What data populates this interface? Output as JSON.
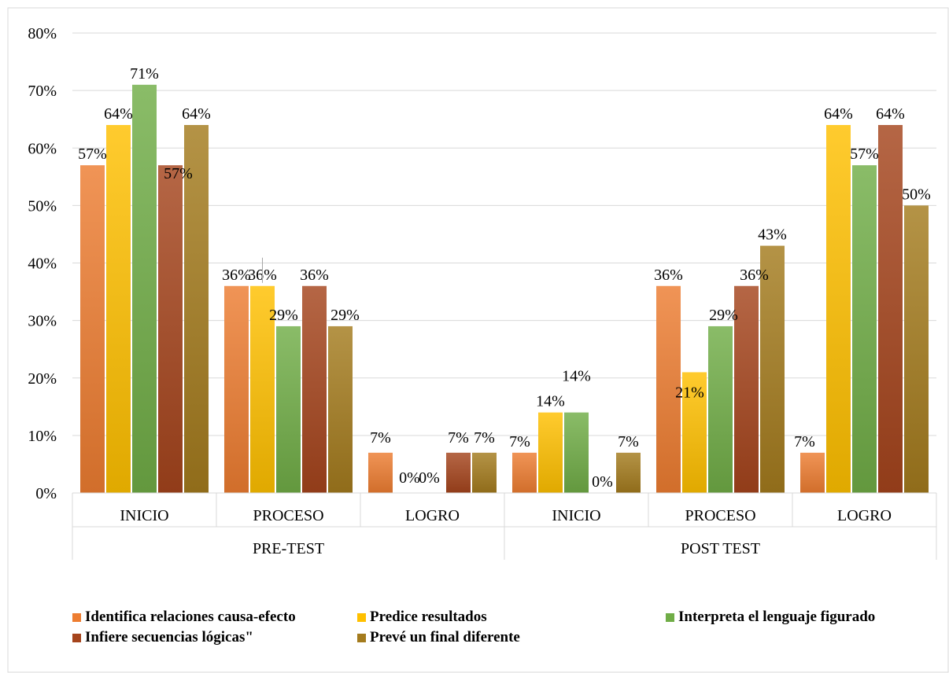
{
  "chart_data": {
    "type": "bar",
    "groups": [
      {
        "label": "PRE-TEST",
        "categories": [
          "INICIO",
          "PROCESO",
          "LOGRO"
        ]
      },
      {
        "label": "POST TEST",
        "categories": [
          "INICIO",
          "PROCESO",
          "LOGRO"
        ]
      }
    ],
    "categories": [
      "INICIO",
      "PROCESO",
      "LOGRO",
      "INICIO",
      "PROCESO",
      "LOGRO"
    ],
    "series": [
      {
        "name": "Identifica relaciones causa-efecto",
        "values": [
          57,
          36,
          7,
          7,
          36,
          7
        ],
        "labels": [
          "57%",
          "36%",
          "7%",
          "7%",
          "36%",
          "7%"
        ],
        "color": "#ED7D31"
      },
      {
        "name": "Predice resultados",
        "values": [
          64,
          36,
          0,
          14,
          21,
          64
        ],
        "labels": [
          "64%",
          "36%",
          "0%",
          "14%",
          "21%",
          "64%"
        ],
        "color": "#FFC000"
      },
      {
        "name": "Interpreta el lenguaje figurado",
        "values": [
          71,
          29,
          0,
          14,
          29,
          57
        ],
        "labels": [
          "71%",
          "29%",
          "0%",
          "14%",
          "29%",
          "57%"
        ],
        "color": "#70AD47"
      },
      {
        "name": "Infiere secuencias lógicas\"",
        "values": [
          57,
          36,
          7,
          0,
          36,
          64
        ],
        "labels": [
          "57%",
          "36%",
          "7%",
          "0%",
          "36%",
          "64%"
        ],
        "color": "#A5441C"
      },
      {
        "name": "Prevé un final diferente",
        "values": [
          64,
          29,
          7,
          7,
          43,
          50
        ],
        "labels": [
          "64%",
          "29%",
          "7%",
          "7%",
          "43%",
          "50%"
        ],
        "color": "#A47B1D"
      }
    ],
    "y_ticks": [
      "0%",
      "10%",
      "20%",
      "30%",
      "40%",
      "50%",
      "60%",
      "70%",
      "80%"
    ],
    "ylim": [
      0,
      80
    ],
    "grid": true,
    "legend_position": "bottom"
  },
  "legend_rows": [
    [
      "Identifica relaciones causa-efecto",
      "Predice resultados",
      "Interpreta el lenguaje figurado"
    ],
    [
      "Infiere secuencias lógicas\"",
      "Prevé un final diferente"
    ]
  ]
}
